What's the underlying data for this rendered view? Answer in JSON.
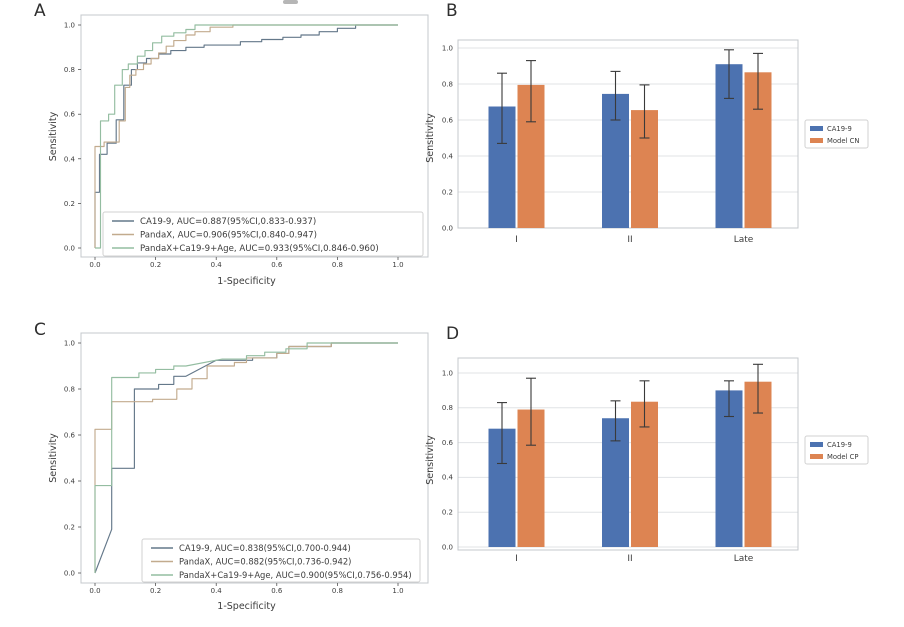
{
  "figure": {
    "background": "#ffffff"
  },
  "panels": {
    "a": {
      "label": "A"
    },
    "b": {
      "label": "B"
    },
    "c": {
      "label": "C"
    },
    "d": {
      "label": "D"
    }
  },
  "chart_data": [
    {
      "id": "A",
      "type": "line",
      "variant": "roc-curve",
      "title": "",
      "xlabel": "1-Specificity",
      "ylabel": "Sensitivity",
      "xlim": [
        0,
        1
      ],
      "ylim": [
        0,
        1
      ],
      "xticks": [
        "0.0",
        "0.2",
        "0.4",
        "0.6",
        "0.8",
        "1.0"
      ],
      "yticks": [
        "0.0",
        "0.2",
        "0.4",
        "0.6",
        "0.8",
        "1.0"
      ],
      "grid": false,
      "legend_position": "lower center inside",
      "series": [
        {
          "name": "CA19-9, AUC=0.887(95%CI,0.833-0.937)",
          "auc": 0.887,
          "color": "#64788a",
          "points": [
            [
              0,
              0
            ],
            [
              0,
              0.25
            ],
            [
              0.015,
              0.25
            ],
            [
              0.015,
              0.42
            ],
            [
              0.04,
              0.42
            ],
            [
              0.04,
              0.47
            ],
            [
              0.07,
              0.47
            ],
            [
              0.07,
              0.575
            ],
            [
              0.095,
              0.575
            ],
            [
              0.095,
              0.73
            ],
            [
              0.12,
              0.73
            ],
            [
              0.12,
              0.8
            ],
            [
              0.14,
              0.8
            ],
            [
              0.14,
              0.83
            ],
            [
              0.17,
              0.83
            ],
            [
              0.17,
              0.85
            ],
            [
              0.21,
              0.85
            ],
            [
              0.21,
              0.87
            ],
            [
              0.25,
              0.87
            ],
            [
              0.25,
              0.885
            ],
            [
              0.3,
              0.885
            ],
            [
              0.3,
              0.9
            ],
            [
              0.36,
              0.9
            ],
            [
              0.36,
              0.91
            ],
            [
              0.48,
              0.91
            ],
            [
              0.48,
              0.925
            ],
            [
              0.55,
              0.925
            ],
            [
              0.55,
              0.935
            ],
            [
              0.62,
              0.935
            ],
            [
              0.62,
              0.945
            ],
            [
              0.68,
              0.945
            ],
            [
              0.68,
              0.955
            ],
            [
              0.74,
              0.955
            ],
            [
              0.74,
              0.97
            ],
            [
              0.8,
              0.97
            ],
            [
              0.8,
              0.985
            ],
            [
              0.86,
              0.985
            ],
            [
              0.86,
              1
            ],
            [
              1,
              1
            ]
          ]
        },
        {
          "name": "PandaX, AUC=0.906(95%CI,0.840-0.947)",
          "auc": 0.906,
          "color": "#c2ab8e",
          "points": [
            [
              0,
              0
            ],
            [
              0,
              0.455
            ],
            [
              0.03,
              0.455
            ],
            [
              0.03,
              0.475
            ],
            [
              0.08,
              0.475
            ],
            [
              0.08,
              0.57
            ],
            [
              0.1,
              0.57
            ],
            [
              0.1,
              0.72
            ],
            [
              0.115,
              0.72
            ],
            [
              0.115,
              0.775
            ],
            [
              0.135,
              0.775
            ],
            [
              0.135,
              0.8
            ],
            [
              0.16,
              0.8
            ],
            [
              0.16,
              0.825
            ],
            [
              0.185,
              0.825
            ],
            [
              0.185,
              0.85
            ],
            [
              0.21,
              0.85
            ],
            [
              0.21,
              0.875
            ],
            [
              0.235,
              0.875
            ],
            [
              0.235,
              0.905
            ],
            [
              0.26,
              0.905
            ],
            [
              0.26,
              0.93
            ],
            [
              0.3,
              0.93
            ],
            [
              0.3,
              0.955
            ],
            [
              0.33,
              0.955
            ],
            [
              0.33,
              0.97
            ],
            [
              0.38,
              0.97
            ],
            [
              0.38,
              0.99
            ],
            [
              0.455,
              0.99
            ],
            [
              0.455,
              1
            ],
            [
              1,
              1
            ]
          ]
        },
        {
          "name": "PandaX+Ca19-9+Age, AUC=0.933(95%CI,0.846-0.960)",
          "auc": 0.933,
          "color": "#94bda1",
          "points": [
            [
              0,
              0
            ],
            [
              0.018,
              0
            ],
            [
              0.018,
              0.57
            ],
            [
              0.045,
              0.57
            ],
            [
              0.045,
              0.6
            ],
            [
              0.065,
              0.6
            ],
            [
              0.065,
              0.73
            ],
            [
              0.09,
              0.73
            ],
            [
              0.09,
              0.8
            ],
            [
              0.11,
              0.8
            ],
            [
              0.11,
              0.825
            ],
            [
              0.14,
              0.825
            ],
            [
              0.14,
              0.86
            ],
            [
              0.165,
              0.86
            ],
            [
              0.165,
              0.885
            ],
            [
              0.19,
              0.885
            ],
            [
              0.19,
              0.92
            ],
            [
              0.22,
              0.92
            ],
            [
              0.22,
              0.95
            ],
            [
              0.26,
              0.95
            ],
            [
              0.26,
              0.965
            ],
            [
              0.3,
              0.965
            ],
            [
              0.3,
              0.98
            ],
            [
              0.33,
              0.98
            ],
            [
              0.33,
              1
            ],
            [
              1,
              1
            ]
          ]
        }
      ]
    },
    {
      "id": "B",
      "type": "bar",
      "title": "",
      "xlabel": "",
      "ylabel": "Sensitivity",
      "categories": [
        "I",
        "II",
        "Late"
      ],
      "yticks": [
        "0.0",
        "0.2",
        "0.4",
        "0.6",
        "0.8",
        "1.0"
      ],
      "ylim": [
        0,
        1.05
      ],
      "grid": true,
      "legend_position": "right outside",
      "series": [
        {
          "name": "CA19-9",
          "color": "#4c72b0",
          "values": [
            0.675,
            0.745,
            0.91
          ],
          "err_low": [
            0.47,
            0.6,
            0.72
          ],
          "err_high": [
            0.86,
            0.87,
            0.99
          ]
        },
        {
          "name": "Model CN",
          "color": "#dd8452",
          "values": [
            0.795,
            0.655,
            0.865
          ],
          "err_low": [
            0.59,
            0.5,
            0.66
          ],
          "err_high": [
            0.93,
            0.795,
            0.97
          ]
        }
      ]
    },
    {
      "id": "C",
      "type": "line",
      "variant": "roc-curve",
      "title": "",
      "xlabel": "1-Specificity",
      "ylabel": "Sensitivity",
      "xlim": [
        0,
        1
      ],
      "ylim": [
        0,
        1
      ],
      "xticks": [
        "0.0",
        "0.2",
        "0.4",
        "0.6",
        "0.8",
        "1.0"
      ],
      "yticks": [
        "0.0",
        "0.2",
        "0.4",
        "0.6",
        "0.8",
        "1.0"
      ],
      "grid": false,
      "legend_position": "lower center inside",
      "series": [
        {
          "name": "CA19-9, AUC=0.838(95%CI,0.700-0.944)",
          "auc": 0.838,
          "color": "#64788a",
          "points": [
            [
              0,
              0
            ],
            [
              0.055,
              0.19
            ],
            [
              0.055,
              0.455
            ],
            [
              0.13,
              0.455
            ],
            [
              0.13,
              0.8
            ],
            [
              0.21,
              0.8
            ],
            [
              0.21,
              0.82
            ],
            [
              0.26,
              0.82
            ],
            [
              0.26,
              0.855
            ],
            [
              0.3,
              0.855
            ],
            [
              0.4,
              0.925
            ],
            [
              0.52,
              0.925
            ],
            [
              0.52,
              0.935
            ],
            [
              0.6,
              0.935
            ],
            [
              0.6,
              0.955
            ],
            [
              0.64,
              0.955
            ],
            [
              0.64,
              0.985
            ],
            [
              0.78,
              0.985
            ],
            [
              0.78,
              1
            ],
            [
              1,
              1
            ]
          ]
        },
        {
          "name": "PandaX, AUC=0.882(95%CI,0.736-0.942)",
          "auc": 0.882,
          "color": "#c2ab8e",
          "points": [
            [
              0,
              0
            ],
            [
              0,
              0.625
            ],
            [
              0.055,
              0.625
            ],
            [
              0.055,
              0.745
            ],
            [
              0.19,
              0.745
            ],
            [
              0.19,
              0.755
            ],
            [
              0.27,
              0.755
            ],
            [
              0.27,
              0.8
            ],
            [
              0.32,
              0.8
            ],
            [
              0.32,
              0.845
            ],
            [
              0.37,
              0.845
            ],
            [
              0.37,
              0.9
            ],
            [
              0.46,
              0.9
            ],
            [
              0.46,
              0.915
            ],
            [
              0.5,
              0.915
            ],
            [
              0.5,
              0.935
            ],
            [
              0.6,
              0.935
            ],
            [
              0.6,
              0.955
            ],
            [
              0.64,
              0.955
            ],
            [
              0.64,
              0.985
            ],
            [
              0.78,
              0.985
            ],
            [
              0.78,
              1
            ],
            [
              1,
              1
            ]
          ]
        },
        {
          "name": "PandaX+Ca19-9+Age, AUC=0.900(95%CI,0.756-0.954)",
          "auc": 0.9,
          "color": "#94bda1",
          "points": [
            [
              0,
              0
            ],
            [
              0,
              0.38
            ],
            [
              0.055,
              0.38
            ],
            [
              0.055,
              0.85
            ],
            [
              0.145,
              0.85
            ],
            [
              0.145,
              0.87
            ],
            [
              0.2,
              0.87
            ],
            [
              0.2,
              0.885
            ],
            [
              0.26,
              0.885
            ],
            [
              0.26,
              0.9
            ],
            [
              0.3,
              0.9
            ],
            [
              0.42,
              0.93
            ],
            [
              0.5,
              0.93
            ],
            [
              0.5,
              0.945
            ],
            [
              0.56,
              0.945
            ],
            [
              0.56,
              0.96
            ],
            [
              0.63,
              0.96
            ],
            [
              0.63,
              0.975
            ],
            [
              0.7,
              0.975
            ],
            [
              0.7,
              1
            ],
            [
              0.76,
              1
            ],
            [
              1,
              1
            ]
          ]
        }
      ]
    },
    {
      "id": "D",
      "type": "bar",
      "title": "",
      "xlabel": "",
      "ylabel": "Sensitivity",
      "categories": [
        "I",
        "II",
        "Late"
      ],
      "yticks": [
        "0.0",
        "0.2",
        "0.4",
        "0.6",
        "0.8",
        "1.0"
      ],
      "ylim": [
        0,
        1.09
      ],
      "grid": true,
      "legend_position": "right outside",
      "series": [
        {
          "name": "CA19-9",
          "color": "#4c72b0",
          "values": [
            0.68,
            0.74,
            0.9
          ],
          "err_low": [
            0.48,
            0.61,
            0.75
          ],
          "err_high": [
            0.83,
            0.84,
            0.955
          ]
        },
        {
          "name": "Model CP",
          "color": "#dd8452",
          "values": [
            0.79,
            0.835,
            0.95
          ],
          "err_low": [
            0.585,
            0.69,
            0.77
          ],
          "err_high": [
            0.97,
            0.955,
            1.05
          ]
        }
      ]
    }
  ]
}
